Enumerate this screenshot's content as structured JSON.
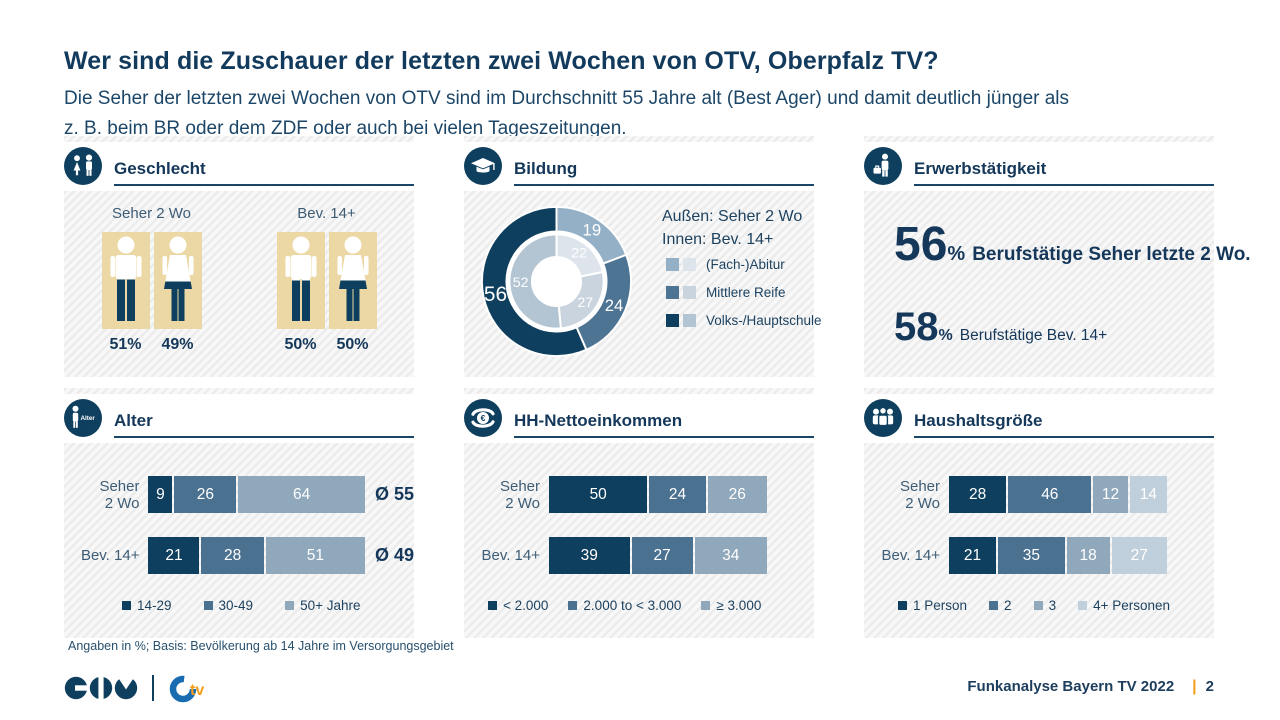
{
  "page": {
    "title": "Wer sind die Zuschauer der letzten zwei Wochen von OTV, Oberpfalz TV?",
    "subtitle_line1": "Die Seher der letzten zwei Wochen von OTV sind im Durchschnitt 55 Jahre alt (Best Ager) und damit deutlich jünger als",
    "subtitle_line2": "z. B. beim BR oder dem ZDF oder auch bei vielen Tageszeitungen.",
    "footnote": "Angaben in %; Basis:  Bevölkerung ab 14 Jahre im Versorgungsgebiet",
    "footer_source": "Funkanalyse Bayern TV 2022",
    "page_separator": "|",
    "page_number": "2"
  },
  "colors": {
    "navy": "#0e3f5e",
    "steel": "#4b7191",
    "grayblue": "#8fa8bc",
    "lightblue": "#bfcfdb",
    "beige": "#ecd8a4",
    "orange": "#f59d1c",
    "otv_blue": "#1a6cb0",
    "rule": "#1b4566",
    "text": "#14375a"
  },
  "icons": {
    "panel0": "man-woman-icon",
    "panel1": "graduation-cap-icon",
    "panel2": "worker-briefcase-icon",
    "panel3": "person-age-icon",
    "panel4": "hands-coin-euro-icon",
    "panel5": "people-group-icon",
    "footer": [
      "tv-bayern-logo",
      "otv-logo"
    ]
  },
  "chart_data": [
    {
      "type": "pictogram",
      "title": "Geschlecht",
      "unit": "%",
      "groups": [
        {
          "label": "Seher 2 Wo",
          "values": [
            {
              "gender": "male",
              "pct": 51,
              "label": "51%"
            },
            {
              "gender": "female",
              "pct": 49,
              "label": "49%"
            }
          ]
        },
        {
          "label": "Bev. 14+",
          "values": [
            {
              "gender": "male",
              "pct": 50,
              "label": "50%"
            },
            {
              "gender": "female",
              "pct": 50,
              "label": "50%"
            }
          ]
        }
      ]
    },
    {
      "type": "donut",
      "title": "Bildung",
      "annotation": [
        "Außen: Seher 2 Wo",
        "Innen: Bev. 14+"
      ],
      "categories": [
        "(Fach-)Abitur",
        "Mittlere Reife",
        "Volks-/Hauptschule"
      ],
      "series": [
        {
          "name": "Seher 2 Wo",
          "ring": "outer",
          "values": [
            19,
            24,
            56
          ]
        },
        {
          "name": "Bev. 14+",
          "ring": "inner",
          "values": [
            22,
            27,
            52
          ]
        }
      ],
      "outer_colors": [
        "#94b0c6",
        "#4e7494",
        "#0f3f5f"
      ],
      "inner_colors": [
        "#dde4ec",
        "#c9d4de",
        "#b3c5d3"
      ]
    },
    {
      "type": "kpi",
      "title": "Erwerbstätigkeit",
      "items": [
        {
          "value": "56",
          "unit": "%",
          "label": "Berufstätige Seher letzte 2 Wo.",
          "style": "primary"
        },
        {
          "value": "58",
          "unit": "%",
          "label": "Berufstätige Bev. 14+",
          "style": "secondary"
        }
      ]
    },
    {
      "type": "stacked-bar",
      "title": "Alter",
      "categories": [
        "14-29",
        "30-49",
        "50+ Jahre"
      ],
      "colors": [
        "#0e3f5e",
        "#4b7191",
        "#8fa8bc"
      ],
      "rows": [
        {
          "label_lines": [
            "Seher",
            "2 Wo"
          ],
          "values": [
            9,
            26,
            64
          ],
          "avg": "Ø 55"
        },
        {
          "label_lines": [
            "Bev. 14+"
          ],
          "values": [
            21,
            28,
            51
          ],
          "avg": "Ø 49"
        }
      ]
    },
    {
      "type": "stacked-bar",
      "title": "HH-Nettoeinkommen",
      "categories": [
        "< 2.000",
        "2.000 to < 3.000",
        "≥ 3.000"
      ],
      "colors": [
        "#0e3f5e",
        "#4b7191",
        "#8fa8bc"
      ],
      "rows": [
        {
          "label_lines": [
            "Seher",
            "2 Wo"
          ],
          "values": [
            50,
            24,
            26
          ]
        },
        {
          "label_lines": [
            "Bev. 14+"
          ],
          "values": [
            39,
            27,
            34
          ]
        }
      ]
    },
    {
      "type": "stacked-bar",
      "title": "Haushaltsgröße",
      "categories": [
        "1 Person",
        "2",
        "3",
        "4+  Personen"
      ],
      "colors": [
        "#0e3f5e",
        "#4b7191",
        "#8fa8bc",
        "#bfcfdb"
      ],
      "rows": [
        {
          "label_lines": [
            "Seher",
            "2 Wo"
          ],
          "values": [
            28,
            46,
            12,
            14
          ]
        },
        {
          "label_lines": [
            "Bev. 14+"
          ],
          "values": [
            21,
            35,
            18,
            27
          ]
        }
      ]
    }
  ]
}
